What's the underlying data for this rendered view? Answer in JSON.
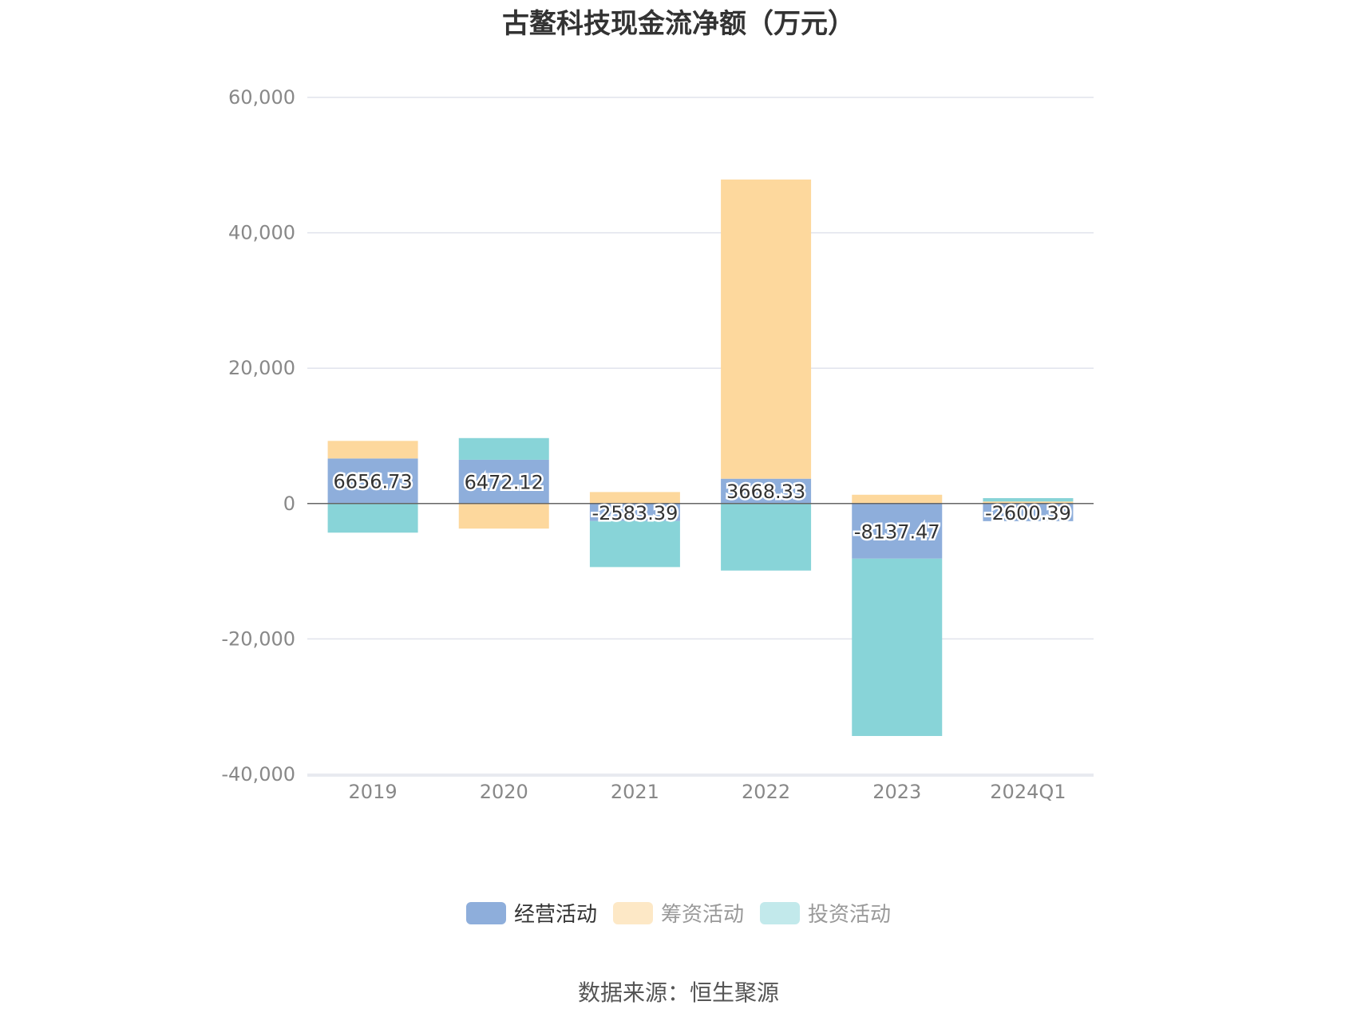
{
  "chart_data": {
    "type": "bar",
    "stacked": true,
    "title": "古鳌科技现金流净额（万元）",
    "categories": [
      "2019",
      "2020",
      "2021",
      "2022",
      "2023",
      "2024Q1"
    ],
    "ylim": [
      -40000,
      60000
    ],
    "yticks": [
      60000,
      40000,
      20000,
      0,
      -20000,
      -40000
    ],
    "ytick_labels": [
      "60,000",
      "40,000",
      "20,000",
      "0",
      "-20,000",
      "-40,000"
    ],
    "grid": true,
    "legend_position": "bottom-center",
    "series": [
      {
        "name": "经营活动",
        "color": "#8eaedb",
        "values": [
          6656.73,
          6472.12,
          -2583.39,
          3668.33,
          -8137.47,
          -2600.39
        ],
        "labels": [
          "6656.73",
          "6472.12",
          "-2583.39",
          "3668.33",
          "-8137.47",
          "-2600.39"
        ]
      },
      {
        "name": "筹资活动",
        "color": "#fdd89d",
        "values": [
          2600,
          -3700,
          1700,
          44200,
          1300,
          300
        ]
      },
      {
        "name": "投资活动",
        "color": "#88d4d8",
        "values": [
          -4300,
          3200,
          -6800,
          -9900,
          -26200,
          500
        ]
      }
    ]
  },
  "legend": [
    {
      "label": "经营活动",
      "color": "#8eaedb",
      "text_color": "#333333"
    },
    {
      "label": "筹资活动",
      "color": "#fde8c6",
      "text_color": "#999999"
    },
    {
      "label": "投资活动",
      "color": "#c2e9eb",
      "text_color": "#999999"
    }
  ],
  "source": "数据来源：恒生聚源"
}
